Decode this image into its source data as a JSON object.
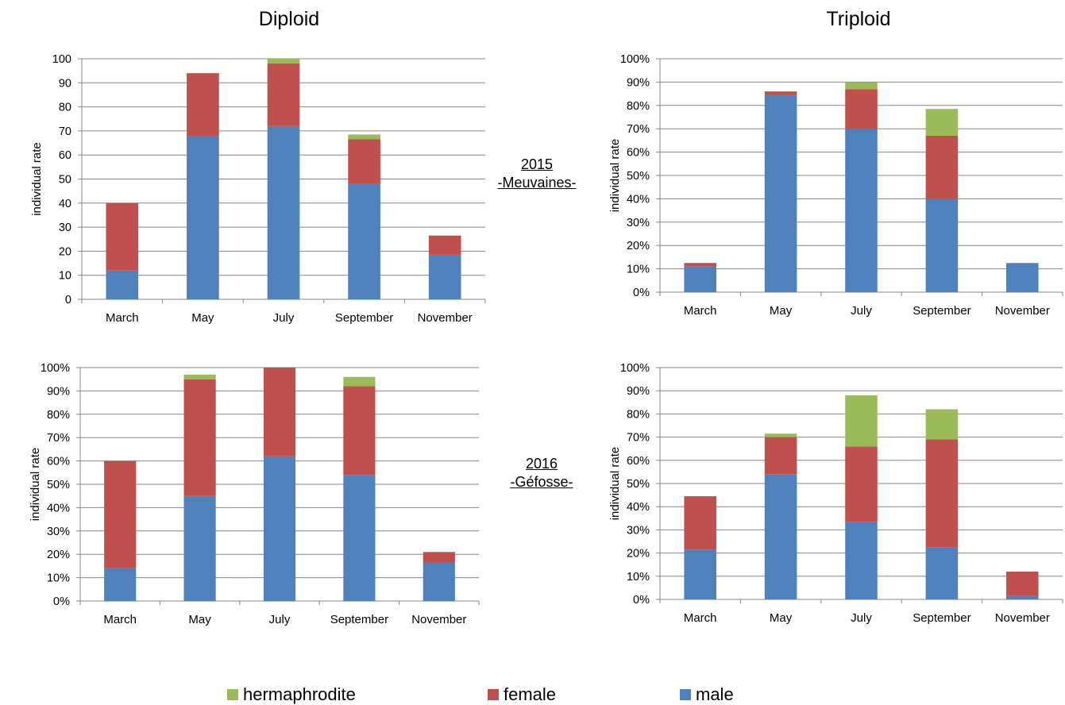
{
  "column_titles": {
    "left": "Diploid",
    "right": "Triploid"
  },
  "sites": [
    {
      "year": "2015",
      "location": "-Meuvaines-"
    },
    {
      "year": "2016",
      "location": "-Géfosse-"
    }
  ],
  "colors": {
    "male": "#4F81BD",
    "female": "#C0504D",
    "hermaphrodite": "#9BBB59",
    "grid": "#868686",
    "axis": "#868686"
  },
  "legend": [
    {
      "key": "hermaphrodite",
      "label": "hermaphrodite"
    },
    {
      "key": "female",
      "label": "female"
    },
    {
      "key": "male",
      "label": "male"
    }
  ],
  "chart_data": [
    {
      "type": "bar",
      "stacked": true,
      "ylabel": "individual rate",
      "ylim": [
        0,
        100
      ],
      "yticks": [
        "0",
        "10",
        "20",
        "30",
        "40",
        "50",
        "60",
        "70",
        "80",
        "90",
        "100"
      ],
      "categories": [
        "March",
        "May",
        "July",
        "September",
        "November"
      ],
      "series": [
        {
          "name": "male",
          "values": [
            12,
            68,
            72,
            48,
            18.5
          ]
        },
        {
          "name": "female",
          "values": [
            28,
            26,
            26,
            18.5,
            8
          ]
        },
        {
          "name": "hermaphrodite",
          "values": [
            0,
            0,
            2,
            2,
            0
          ]
        }
      ]
    },
    {
      "type": "bar",
      "stacked": true,
      "ylabel": "individual rate",
      "ylim": [
        0,
        100
      ],
      "yticks": [
        "0%",
        "10%",
        "20%",
        "30%",
        "40%",
        "50%",
        "60%",
        "70%",
        "80%",
        "90%",
        "100%"
      ],
      "categories": [
        "March",
        "May",
        "July",
        "September",
        "November"
      ],
      "series": [
        {
          "name": "male",
          "values": [
            11,
            84.5,
            70,
            40,
            12.5
          ]
        },
        {
          "name": "female",
          "values": [
            1.5,
            1.5,
            17,
            27,
            0
          ]
        },
        {
          "name": "hermaphrodite",
          "values": [
            0,
            0,
            3,
            11.5,
            0
          ]
        }
      ]
    },
    {
      "type": "bar",
      "stacked": true,
      "ylabel": "individual rate",
      "ylim": [
        0,
        100
      ],
      "yticks": [
        "0%",
        "10%",
        "20%",
        "30%",
        "40%",
        "50%",
        "60%",
        "70%",
        "80%",
        "90%",
        "100%"
      ],
      "categories": [
        "March",
        "May",
        "July",
        "September",
        "November"
      ],
      "series": [
        {
          "name": "male",
          "values": [
            14,
            45,
            62,
            54,
            16.5
          ]
        },
        {
          "name": "female",
          "values": [
            46,
            50,
            38,
            38,
            4.5
          ]
        },
        {
          "name": "hermaphrodite",
          "values": [
            0,
            2,
            0,
            4,
            0
          ]
        }
      ]
    },
    {
      "type": "bar",
      "stacked": true,
      "ylabel": "individual rate",
      "ylim": [
        0,
        100
      ],
      "yticks": [
        "0%",
        "10%",
        "20%",
        "30%",
        "40%",
        "50%",
        "60%",
        "70%",
        "80%",
        "90%",
        "100%"
      ],
      "categories": [
        "March",
        "May",
        "July",
        "September",
        "November"
      ],
      "series": [
        {
          "name": "male",
          "values": [
            21.5,
            54,
            33.5,
            22.5,
            1.5
          ]
        },
        {
          "name": "female",
          "values": [
            23,
            16,
            32.5,
            46.5,
            10.5
          ]
        },
        {
          "name": "hermaphrodite",
          "values": [
            0,
            1.5,
            22,
            13,
            0
          ]
        }
      ]
    }
  ]
}
